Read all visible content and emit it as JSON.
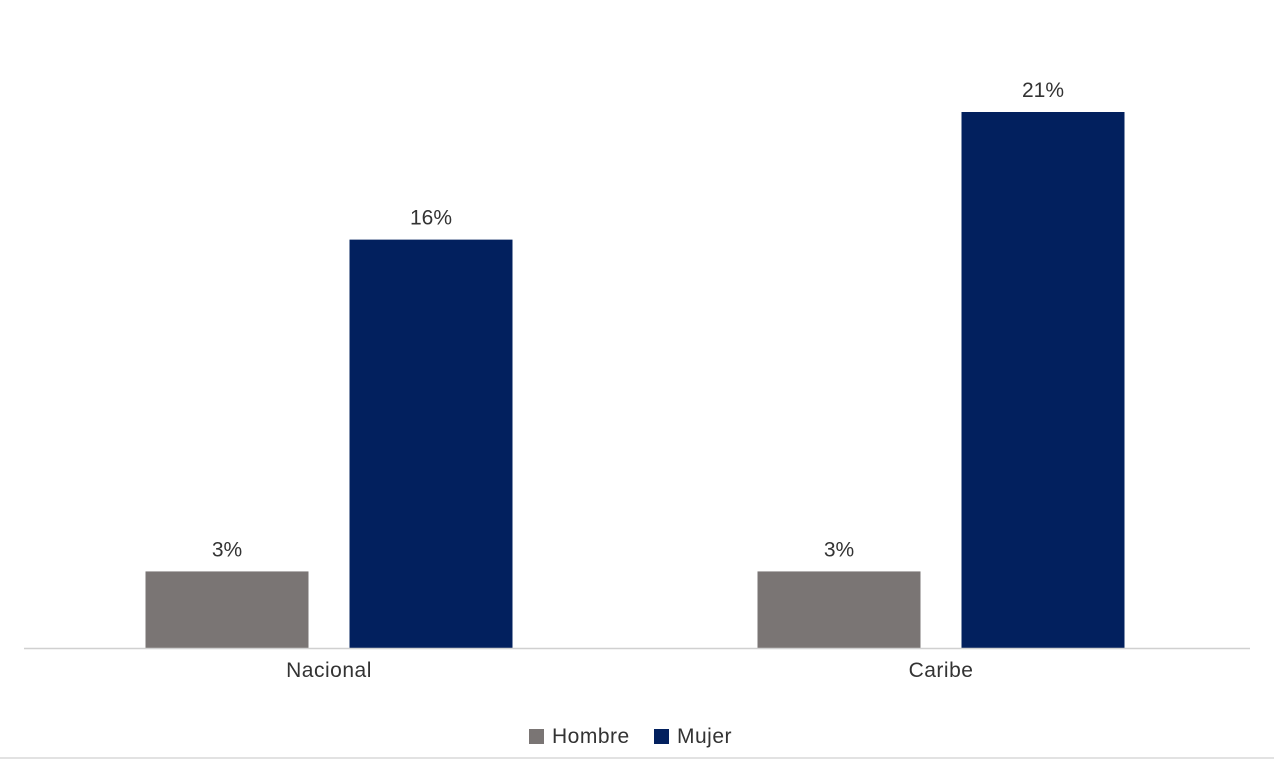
{
  "chart_data": {
    "type": "bar",
    "categories": [
      "Nacional",
      "Caribe"
    ],
    "series": [
      {
        "name": "Hombre",
        "values": [
          3,
          3
        ],
        "labels": [
          "3%",
          "3%"
        ],
        "color": "#7a7574"
      },
      {
        "name": "Mujer",
        "values": [
          16,
          21
        ],
        "labels": [
          "16%",
          "21%"
        ],
        "color": "#02205e"
      }
    ],
    "title": "",
    "xlabel": "",
    "ylabel": "",
    "ylim": [
      0,
      21
    ],
    "grid": false,
    "legend": "bottom-center"
  }
}
